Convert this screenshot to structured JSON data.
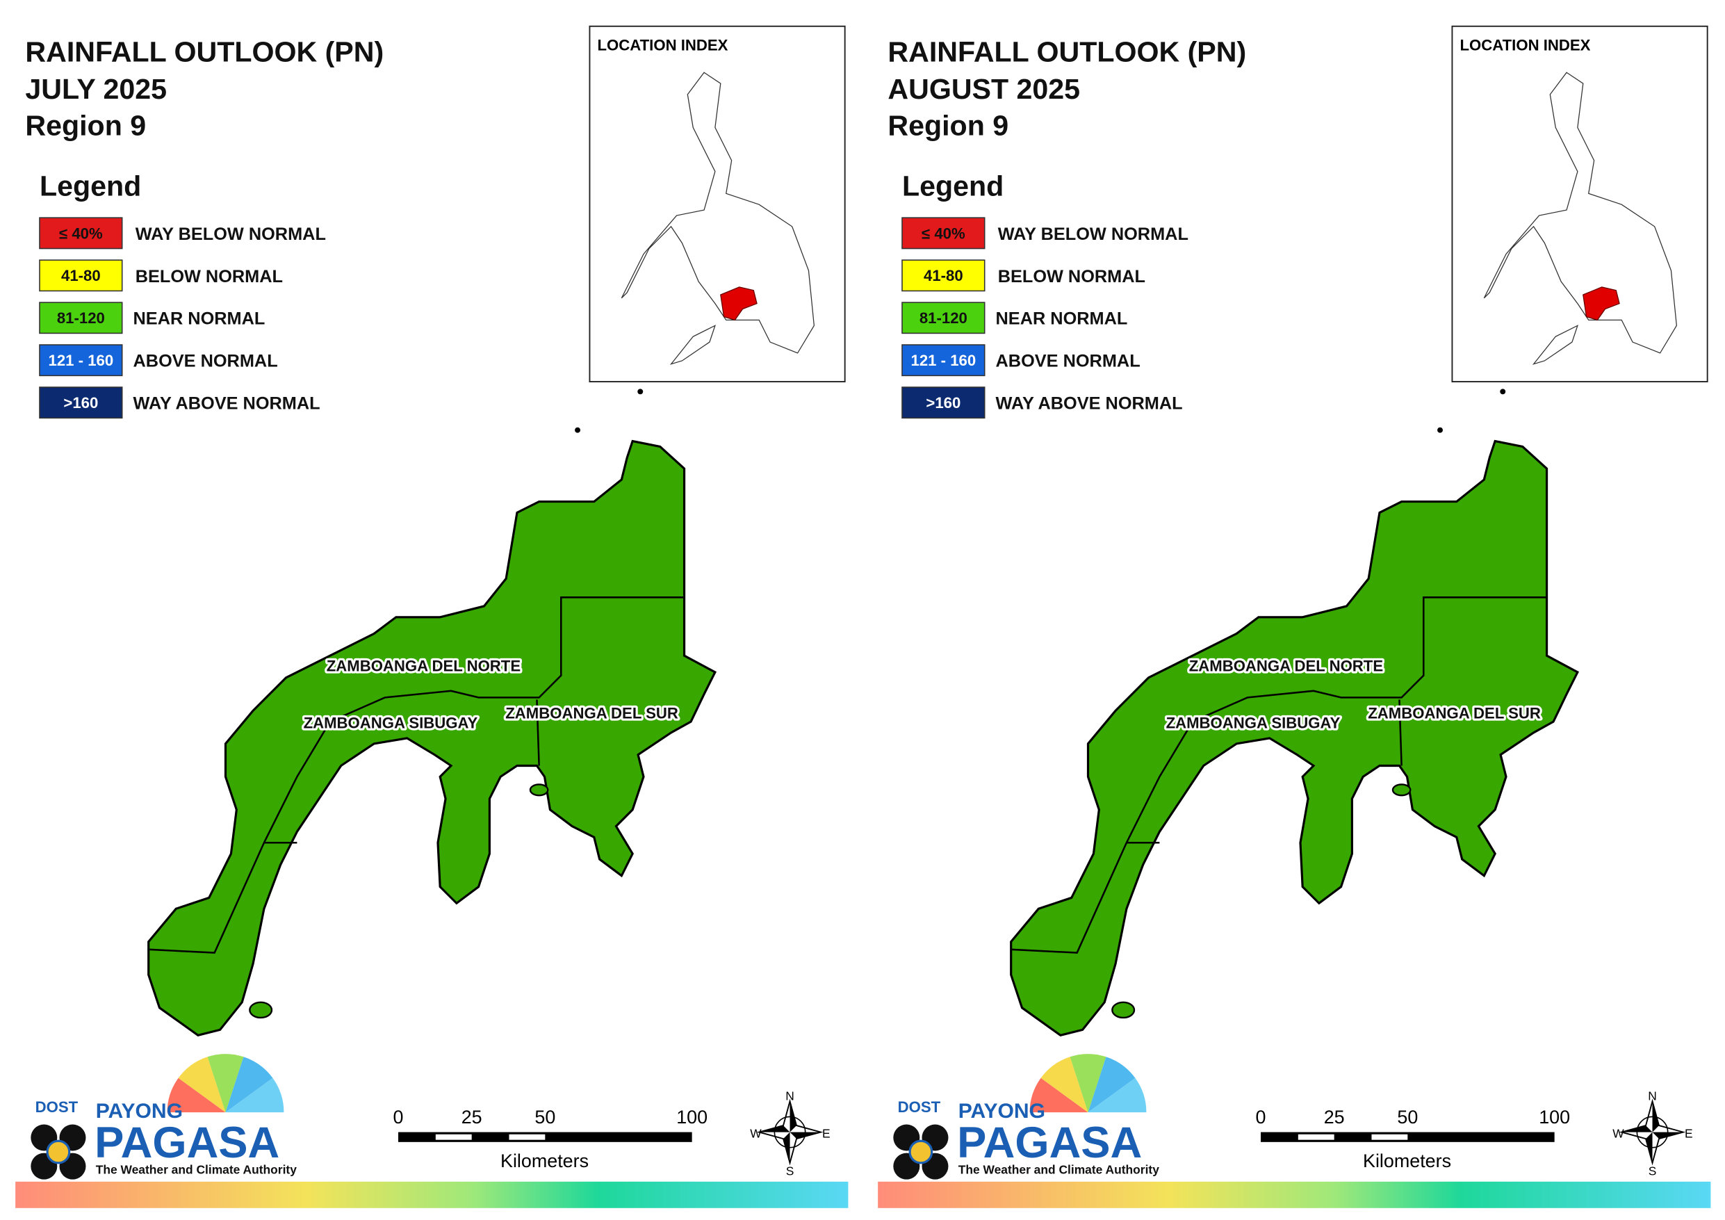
{
  "panels": [
    {
      "title": "RAINFALL OUTLOOK (PN)",
      "period": "JULY 2025",
      "region": "Region 9",
      "legend_title": "Legend",
      "legend": [
        {
          "range": "≤ 40%",
          "label": "WAY BELOW NORMAL",
          "color": "#e31a1c"
        },
        {
          "range": "41-80",
          "label": "BELOW NORMAL",
          "color": "#ffff00"
        },
        {
          "range": "81-120",
          "label": "NEAR NORMAL",
          "color": "#4cd10f"
        },
        {
          "range": "121 - 160",
          "label": "ABOVE NORMAL",
          "color": "#1464dc"
        },
        {
          "range": ">160",
          "label": "WAY ABOVE NORMAL",
          "color": "#0b2a70"
        }
      ],
      "location_index": "LOCATION INDEX",
      "provinces": [
        "ZAMBOANGA DEL NORTE",
        "ZAMBOANGA SIBUGAY",
        "ZAMBOANGA DEL SUR"
      ],
      "map_color": "#38a800",
      "scale_ticks": [
        0,
        25,
        50,
        100
      ],
      "scale_unit": "Kilometers",
      "compass": [
        "N",
        "E",
        "S",
        "W"
      ],
      "logo": {
        "agency": "DOST",
        "brand": "PAYONG",
        "name": "PAGASA",
        "tagline": "The Weather and Climate Authority"
      }
    },
    {
      "title": "RAINFALL OUTLOOK (PN)",
      "period": "AUGUST 2025",
      "region": "Region 9",
      "legend_title": "Legend",
      "legend": [
        {
          "range": "≤ 40%",
          "label": "WAY BELOW NORMAL",
          "color": "#e31a1c"
        },
        {
          "range": "41-80",
          "label": "BELOW NORMAL",
          "color": "#ffff00"
        },
        {
          "range": "81-120",
          "label": "NEAR NORMAL",
          "color": "#4cd10f"
        },
        {
          "range": "121 - 160",
          "label": "ABOVE NORMAL",
          "color": "#1464dc"
        },
        {
          "range": ">160",
          "label": "WAY ABOVE NORMAL",
          "color": "#0b2a70"
        }
      ],
      "location_index": "LOCATION INDEX",
      "provinces": [
        "ZAMBOANGA DEL NORTE",
        "ZAMBOANGA SIBUGAY",
        "ZAMBOANGA DEL SUR"
      ],
      "map_color": "#38a800",
      "scale_ticks": [
        0,
        25,
        50,
        100
      ],
      "scale_unit": "Kilometers",
      "compass": [
        "N",
        "E",
        "S",
        "W"
      ],
      "logo": {
        "agency": "DOST",
        "brand": "PAYONG",
        "name": "PAGASA",
        "tagline": "The Weather and Climate Authority"
      }
    }
  ]
}
